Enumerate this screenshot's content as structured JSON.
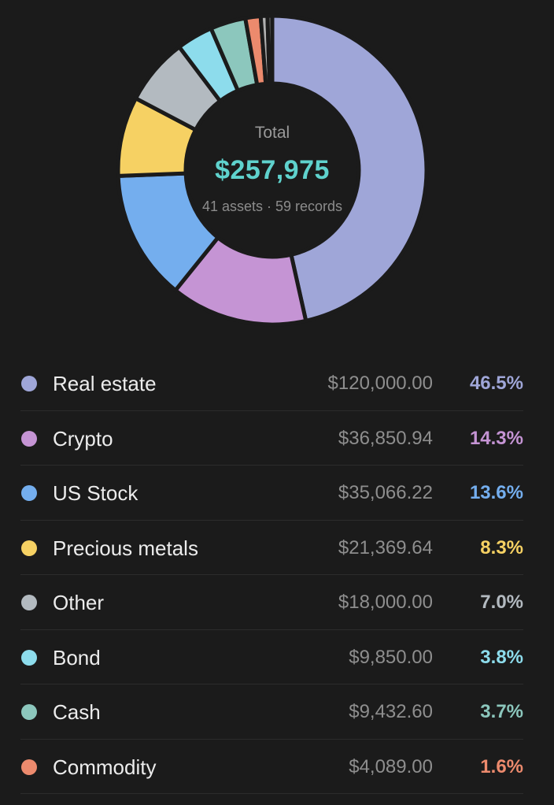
{
  "summary": {
    "total_label": "Total",
    "total_value": "$257,975",
    "assets_records": "41 assets · 59 records"
  },
  "colors": {
    "background": "#1b1b1b",
    "accent": "#5fd2cd",
    "divider": "#2c2c2c"
  },
  "chart_data": {
    "type": "pie",
    "style": "donut",
    "categories": [
      "Real estate",
      "Crypto",
      "US Stock",
      "Precious metals",
      "Other",
      "Bond",
      "Cash",
      "Commodity",
      "(small slice)",
      "(small slice)"
    ],
    "values": [
      46.5,
      14.3,
      13.6,
      8.3,
      7.0,
      3.8,
      3.7,
      1.6,
      0.7,
      0.5
    ],
    "colors": [
      "#9fa6d8",
      "#c594d4",
      "#74aeee",
      "#f6d163",
      "#b3bac0",
      "#8ddcec",
      "#8cc7bd",
      "#ec8a6d",
      "#b0b0b0",
      "#707070"
    ],
    "start": "top",
    "direction": "clockwise"
  },
  "legend": {
    "items": [
      {
        "name": "Real estate",
        "amount": "$120,000.00",
        "percent": "46.5%",
        "color": "#9fa6d8"
      },
      {
        "name": "Crypto",
        "amount": "$36,850.94",
        "percent": "14.3%",
        "color": "#c594d4"
      },
      {
        "name": "US Stock",
        "amount": "$35,066.22",
        "percent": "13.6%",
        "color": "#74aeee"
      },
      {
        "name": "Precious metals",
        "amount": "$21,369.64",
        "percent": "8.3%",
        "color": "#f6d163"
      },
      {
        "name": "Other",
        "amount": "$18,000.00",
        "percent": "7.0%",
        "color": "#b3bac0"
      },
      {
        "name": "Bond",
        "amount": "$9,850.00",
        "percent": "3.8%",
        "color": "#8ddcec"
      },
      {
        "name": "Cash",
        "amount": "$9,432.60",
        "percent": "3.7%",
        "color": "#8cc7bd"
      },
      {
        "name": "Commodity",
        "amount": "$4,089.00",
        "percent": "1.6%",
        "color": "#ec8a6d"
      }
    ]
  }
}
